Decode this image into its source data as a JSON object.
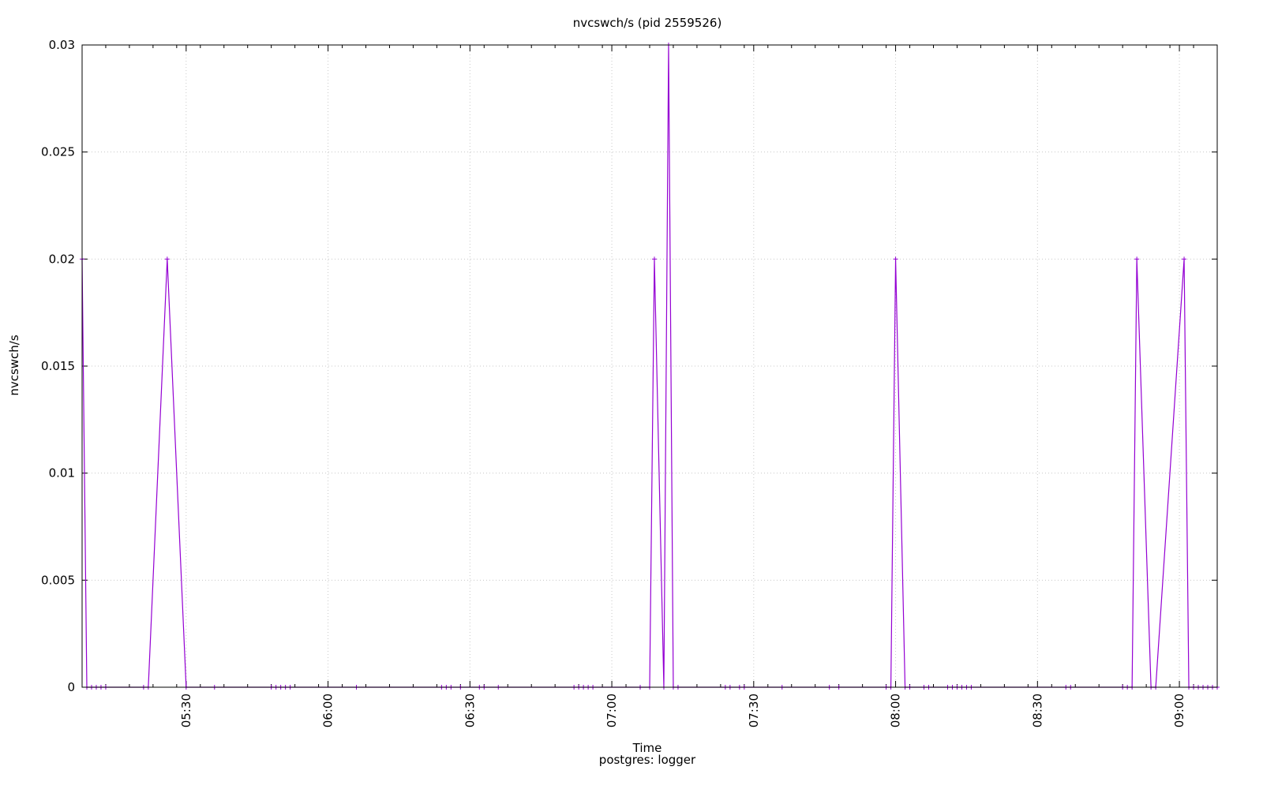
{
  "chart_data": {
    "type": "line",
    "title": "nvcswch/s (pid 2559526)",
    "xlabel": "Time",
    "subtitle": "postgres: logger",
    "ylabel": "nvcswch/s",
    "xlim": [
      "05:08",
      "09:08"
    ],
    "ylim": [
      0,
      0.03
    ],
    "x_ticks": [
      "05:30",
      "06:00",
      "06:30",
      "07:00",
      "07:30",
      "08:00",
      "08:30",
      "09:00"
    ],
    "y_ticks": [
      "0",
      "0.005",
      "0.01",
      "0.015",
      "0.02",
      "0.025",
      "0.03"
    ],
    "grid": true,
    "series": [
      {
        "color": "#9400d3",
        "marker": "+",
        "points": [
          [
            "05:08",
            0.02
          ],
          [
            "05:09",
            0
          ],
          [
            "05:10",
            0
          ],
          [
            "05:11",
            0
          ],
          [
            "05:12",
            0
          ],
          [
            "05:13",
            0
          ],
          [
            "05:21",
            0
          ],
          [
            "05:22",
            0
          ],
          [
            "05:26",
            0.02
          ],
          [
            "05:30",
            0
          ],
          [
            "05:36",
            0
          ],
          [
            "05:48",
            0
          ],
          [
            "05:49",
            0
          ],
          [
            "05:50",
            0
          ],
          [
            "05:51",
            0
          ],
          [
            "05:52",
            0
          ],
          [
            "06:06",
            0
          ],
          [
            "06:24",
            0
          ],
          [
            "06:25",
            0
          ],
          [
            "06:26",
            0
          ],
          [
            "06:28",
            0
          ],
          [
            "06:32",
            0
          ],
          [
            "06:33",
            0
          ],
          [
            "06:36",
            0
          ],
          [
            "06:52",
            0
          ],
          [
            "06:53",
            0
          ],
          [
            "06:54",
            0
          ],
          [
            "06:55",
            0
          ],
          [
            "06:56",
            0
          ],
          [
            "07:06",
            0
          ],
          [
            "07:08",
            0
          ],
          [
            "07:09",
            0.02
          ],
          [
            "07:11",
            0
          ],
          [
            "07:12",
            0.03
          ],
          [
            "07:13",
            0
          ],
          [
            "07:14",
            0
          ],
          [
            "07:24",
            0
          ],
          [
            "07:25",
            0
          ],
          [
            "07:27",
            0
          ],
          [
            "07:28",
            0
          ],
          [
            "07:36",
            0
          ],
          [
            "07:46",
            0
          ],
          [
            "07:48",
            0
          ],
          [
            "07:58",
            0
          ],
          [
            "07:59",
            0
          ],
          [
            "08:00",
            0.02
          ],
          [
            "08:02",
            0
          ],
          [
            "08:03",
            0
          ],
          [
            "08:06",
            0
          ],
          [
            "08:07",
            0
          ],
          [
            "08:11",
            0
          ],
          [
            "08:12",
            0
          ],
          [
            "08:13",
            0
          ],
          [
            "08:14",
            0
          ],
          [
            "08:15",
            0
          ],
          [
            "08:16",
            0
          ],
          [
            "08:36",
            0
          ],
          [
            "08:37",
            0
          ],
          [
            "08:48",
            0
          ],
          [
            "08:49",
            0
          ],
          [
            "08:50",
            0
          ],
          [
            "08:51",
            0.02
          ],
          [
            "08:54",
            0
          ],
          [
            "08:55",
            0
          ],
          [
            "09:01",
            0.02
          ],
          [
            "09:02",
            0
          ],
          [
            "09:03",
            0
          ],
          [
            "09:04",
            0
          ],
          [
            "09:05",
            0
          ],
          [
            "09:06",
            0
          ],
          [
            "09:07",
            0
          ],
          [
            "09:08",
            0
          ]
        ]
      }
    ]
  }
}
